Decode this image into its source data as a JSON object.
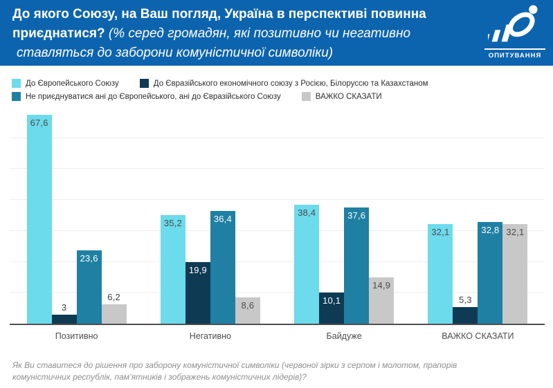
{
  "header": {
    "title_line1": "До якого Союзу, на Ваш погляд, Україна в перспективі повинна",
    "title_line2_bold": "приєднатися?",
    "title_line2_italic": "(% серед громадян, які позитивно чи негативно",
    "title_line3_italic": "ставляться до заборони комуністичної символіки)",
    "logo_caption": "ОПИТУВАННЯ",
    "background_color": "#0D64AE"
  },
  "footnote": "Як Ви ставитеся до рішення про заборону комуністичної символіки (червоної зірки з серпом і молотом, прапорів комуністичних республік, пам’ятників і зображень комуністичних лідерів)?",
  "chart_data": {
    "type": "bar",
    "categories": [
      "Позитивно",
      "Негативно",
      "Байдуже",
      "ВАЖКО СКАЗАТИ"
    ],
    "series": [
      {
        "name": "До Європейського Союзу",
        "color": "#6CDBEC",
        "label_color": "#4A4A4A",
        "values": [
          67.6,
          35.2,
          38.4,
          32.1
        ],
        "labels": [
          "67,6",
          "35,2",
          "38,4",
          "32,1"
        ]
      },
      {
        "name": "До Євразійського економічного союзу з Росією, Білоруссю та Казахстаном",
        "color": "#0E3A53",
        "label_color": "#FFFFFF",
        "values": [
          3,
          19.9,
          10.1,
          5.3
        ],
        "labels": [
          "3",
          "19,9",
          "10,1",
          "5,3"
        ]
      },
      {
        "name": "Не приєднуватися ані до Європейського, ані до Євразійського Союзу",
        "color": "#1F80A3",
        "label_color": "#FFFFFF",
        "values": [
          23.6,
          36.4,
          37.6,
          32.8
        ],
        "labels": [
          "23,6",
          "36,4",
          "37,6",
          "32,8"
        ]
      },
      {
        "name": "ВАЖКО СКАЗАТИ",
        "color": "#C8C8C8",
        "label_color": "#4A4A4A",
        "values": [
          6.2,
          8.6,
          14.9,
          32.1
        ],
        "labels": [
          "6,2",
          "8,6",
          "14,9",
          "32,1"
        ]
      }
    ],
    "xlabel": "",
    "ylabel": "",
    "ylim": [
      0,
      70
    ],
    "gridline_step": 10,
    "grid": true,
    "legend_position": "top",
    "legend_rows": [
      [
        0,
        1
      ],
      [
        2,
        3
      ]
    ],
    "gridline_color": "#EDEDED",
    "axis_color": "#4F4F4F"
  }
}
